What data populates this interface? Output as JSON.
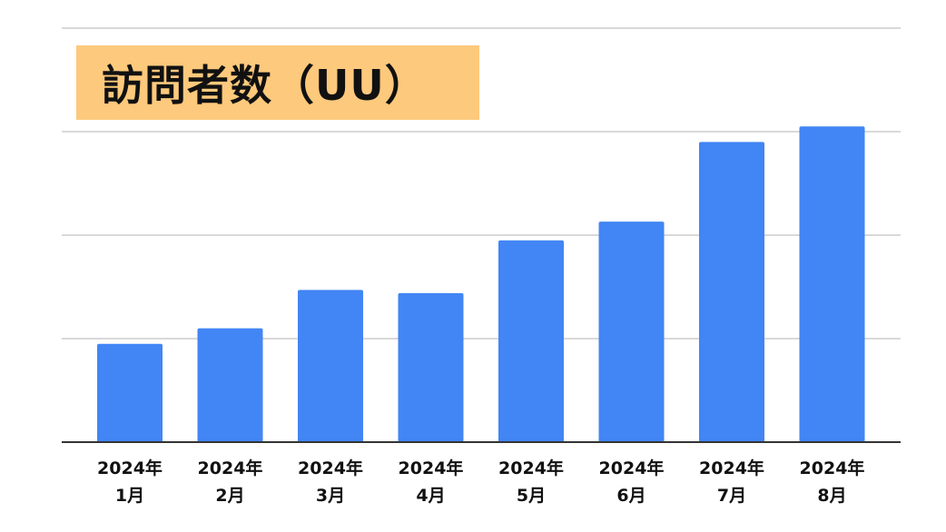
{
  "chart_data": {
    "type": "bar",
    "title": "訪問者数（UU）",
    "categories": [
      [
        "2024年",
        "1月"
      ],
      [
        "2024年",
        "2月"
      ],
      [
        "2024年",
        "3月"
      ],
      [
        "2024年",
        "4月"
      ],
      [
        "2024年",
        "5月"
      ],
      [
        "2024年",
        "6月"
      ],
      [
        "2024年",
        "7月"
      ],
      [
        "2024年",
        "8月"
      ]
    ],
    "values": [
      0.95,
      1.1,
      1.47,
      1.44,
      1.95,
      2.13,
      2.9,
      3.05
    ],
    "ylim": [
      0,
      4
    ],
    "grid": true,
    "bar_color": "#4285f4",
    "title_bg_color": "#fdc97c",
    "grid_color": "#d9d9d9",
    "axis_color": "#333333"
  }
}
